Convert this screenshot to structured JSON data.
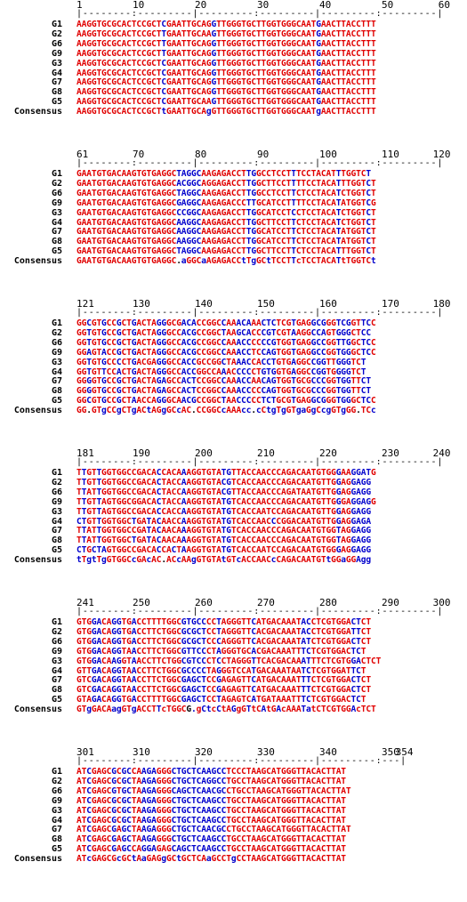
{
  "colors": {
    "identical": "#e00000",
    "variant": "#0000cc",
    "text": "#000000"
  },
  "consensus_label": "Consensus",
  "blocks": [
    {
      "positions": [
        "1",
        "10",
        "20",
        "30",
        "40",
        "50",
        "60"
      ],
      "ruler": "|--------:---------|---------:---------|---------:---------|",
      "rows": [
        {
          "name": "G1",
          "seq": "AAGGTGCGCACTCCGCTCGAATTGCAGGTTGGGTGCTTGGTGGGCAATGAACTTACCTTT",
          "mask": "rrrrrrrrrrrrrrrrrbrrrrrrrrrbrrrrrrrrrrrrrrrrrrrrbrrrrrrrrrrr"
        },
        {
          "name": "G2",
          "seq": "AAGGTGCGCACTCCGCTTGAATTGCAAGTTGGGTGCTTGGTGGGCAATGAACTTACCTTT",
          "mask": "rrrrrrrrrrrrrrrrrbrrrrrrrrrbrrrrrrrrrrrrrrrrrrrrbrrrrrrrrrrr"
        },
        {
          "name": "G6",
          "seq": "AAGGTGCGCACTCCGCTTGAATTGCAGGTTGGGTGCTTGGTGGGCAATGAACTTACCTTT",
          "mask": "rrrrrrrrrrrrrrrrrbrrrrrrrrrbrrrrrrrrrrrrrrrrrrrrbrrrrrrrrrrr"
        },
        {
          "name": "G9",
          "seq": "AAGGTGCGCACTCCGCTTGAATTGCAGGTTGGGTGCTTGGTGGGCAATGAACTTACCTTT",
          "mask": "rrrrrrrrrrrrrrrrrbrrrrrrrrrbrrrrrrrrrrrrrrrrrrrrbrrrrrrrrrrr"
        },
        {
          "name": "G3",
          "seq": "AAGGTGCGCACTCCGCTCGAATTGCAGGTTGGGTGCTTGGTGGGCAATGAACTTACCTTT",
          "mask": "rrrrrrrrrrrrrrrrrbrrrrrrrrrbrrrrrrrrrrrrrrrrrrrrbrrrrrrrrrrr"
        },
        {
          "name": "G4",
          "seq": "AAGGTGCGCACTCCGCTCGAATTGCAGGTTGGGTGCTTGGTGGGCAATGAACTTACCTTT",
          "mask": "rrrrrrrrrrrrrrrrrbrrrrrrrrrbrrrrrrrrrrrrrrrrrrrrbrrrrrrrrrrr"
        },
        {
          "name": "G7",
          "seq": "AAGGTGCGCACTCCGCTCGAATTGCAGGTTGGGTGCTTGGTGGGCAATGAACTTACCTTT",
          "mask": "rrrrrrrrrrrrrrrrrbrrrrrrrrrbrrrrrrrrrrrrrrrrrrrrbrrrrrrrrrrr"
        },
        {
          "name": "G8",
          "seq": "AAGGTGCGCACTCCGCTCGAATTGCAGGTTGGGTGCTTGGTGGGCAATGAACTTACCTTT",
          "mask": "rrrrrrrrrrrrrrrrrbrrrrrrrrrbrrrrrrrrrrrrrrrrrrrrbrrrrrrrrrrr"
        },
        {
          "name": "G5",
          "seq": "AAGGTGCGCACTCCGCTCGAATTGCAAGTTGGGTGCTTGGTGGGCAATGAACTTACCTTT",
          "mask": "rrrrrrrrrrrrrrrrrbrrrrrrrrrbrrrrrrrrrrrrrrrrrrrrbrrrrrrrrrrr"
        },
        {
          "name": "Consensus",
          "seq": "AAGGTGCGCACTCCGCTtGAATTGCAgGTTGGGTGCTTGGTGGGCAATgAACTTACCTTT",
          "mask": "rrrrrrrrrrrrrrrrrbrrrrrrrrbrrrrrrrrrrrrrrrrrrrrrbrrrrrrrrrrr"
        }
      ]
    },
    {
      "positions": [
        "61",
        "70",
        "80",
        "90",
        "100",
        "110",
        "120"
      ],
      "ruler": "|--------:---------|---------:---------|---------:---------|",
      "rows": [
        {
          "name": "G1",
          "seq": "GAATGTGACAAGTGTGAGGCTAGGCAAGAGACCTTGGCCTCCTTTCCTACATTTGGTCT",
          "mask": "rrrrrrrrrrrrrrrrrrrrbbbbbrrrrrrrrrbbrrrrrrrbrrrrrrrrbrrrrrb"
        },
        {
          "name": "G2",
          "seq": "GAATGTGACAAGTGTGAGGCACGGCAGGAGACCTTGGCTTCCTTTTCCTACATTTGGTCT",
          "mask": "rrrrrrrrrrrrrrrrrrrrbbbbbrrrrrrrrrbbrrrrrrrbrrrrrrrrbrrrrrbr"
        },
        {
          "name": "G6",
          "seq": "GAATGTGACAAGTGTGAGGCTAGGCAAGAGACCTTGGCCTCCTTCTCCTACATCTGGTCT",
          "mask": "rrrrrrrrrrrrrrrrrrrrbbbbbrrrrrrrrrbbrrrrrrrbrrrrrrrrbrrrrrbr"
        },
        {
          "name": "G9",
          "seq": "GAATGTGACAAGTGTGAGGCGAGGCAAGAGACCCTTGCATCCTTTTCCTACATATGGTCG",
          "mask": "rrrrrrrrrrrrrrrrrrrrbbbbbrrrrrrrrrbbrrrrrrrbrrrrrrrrbrrrrrbr"
        },
        {
          "name": "G3",
          "seq": "GAATGTGACAAGTGTGAGGCCCGGCAAGAGACCTTGGCATCCTCCTCCTACATCTGGTCT",
          "mask": "rrrrrrrrrrrrrrrrrrrrbbbbbrrrrrrrrrbbrrrrrrrbrrrrrrrrbrrrrrbr"
        },
        {
          "name": "G4",
          "seq": "GAATGTGACAAGTGTGAGGCAAGGCAAGAGACCTTGGCTTCCTTCTCCTACATCTGGTCT",
          "mask": "rrrrrrrrrrrrrrrrrrrrbbbbbrrrrrrrrrbbrrrrrrrbrrrrrrrrbrrrrrbr"
        },
        {
          "name": "G7",
          "seq": "GAATGTGACAAGTGTGAGGCAAGGCAAGAGACCTTGGCATCCTTCTCCTACATATGGTCT",
          "mask": "rrrrrrrrrrrrrrrrrrrrbbbbbrrrrrrrrrbbrrrrrrrbrrrrrrrrbrrrrrbr"
        },
        {
          "name": "G8",
          "seq": "GAATGTGACAAGTGTGAGGCAAGGCAAGAGACCTTGGCATCCTTCTCCTACATATGGTCT",
          "mask": "rrrrrrrrrrrrrrrrrrrrbbbbbrrrrrrrrrbbrrrrrrrbrrrrrrrrbrrrrrbr"
        },
        {
          "name": "G5",
          "seq": "GAATGTGACAAGTGTGAGGCTAGGCAAGAGACCTTGGCTTCCTTCTCCTACATTTGGTCT",
          "mask": "rrrrrrrrrrrrrrrrrrrrbbbbbrrrrrrrrrbbrrrrrrrbrrrrrrrrbrrrrrbr"
        },
        {
          "name": "Consensus",
          "seq": "GAATGTGACAAGTGTGAGGC.aGGCaAGAGACCtTgGCtTCCTTcTCCTACATtTGGTCt",
          "mask": "rrrrrrrrrrrrrrrrrrrrkbrrrbrrrrrrrbrbrrbrrrrbrrrrrrrrbrrrrrrb"
        }
      ]
    },
    {
      "positions": [
        "121",
        "130",
        "140",
        "150",
        "160",
        "170",
        "180"
      ],
      "ruler": "|--------:---------|---------:---------|---------:---------|",
      "rows": [
        {
          "name": "G1",
          "seq": "GGCGTGCCGCTGACTAGGGCGACACCGGCCAAACAAACTCTCGTGAGGCGGGTCGGTTCC",
          "mask": "rrbrrbrrbrrbrrrrbbrrrbbbrrrrrbrrbbbrrbbbrrrbrrrbbbrrbbbrrbbr"
        },
        {
          "name": "G2",
          "seq": "GGTGTGCCGCTGACTAGGGCCACGCCGGCTAAGCACCCGTCGTAAGGCCAGTGGGCTCC",
          "mask": "rrbrrbrrbrrbrrrrbbrrrbbbrrrrrbrrbbbrrbbbrrrbrrrbbbrrbbbrrbbr"
        },
        {
          "name": "G6",
          "seq": "GGTGTGCCGCTGACTAGGGCCACGCCGGCCAAACCCCCCGTGGTGAGGCCGGTTGGCTCC",
          "mask": "rrbrrbrrbrrbrrrrbbrrrbbbrrrrrbrrbbbrrbbbrrrbrrrbbbrrbbbrrbbr"
        },
        {
          "name": "G9",
          "seq": "GGAGTACCGCTGACTAGGGCCACGCCGGCCAAACCTCCAGTGGTGAGGCCGGTGGGCTCC",
          "mask": "rrbrrbrrbrrbrrrrbbrrrbbbrrrrrbrrbbbrrbbbrrrbrrrbbbrrbbbrrbbr"
        },
        {
          "name": "G3",
          "seq": "GGTGTGCCCCTGACGAGGGCCACCGCCGGCTAAACCACCTGTGAGGCCGGTTGGGTCT",
          "mask": "rrbrrbrrbrrbrrrrbbrrrbbbrrrrrbrrbbbrrbbbrrrbrrrbbbrrbbbrrbbr"
        },
        {
          "name": "G4",
          "seq": "GGTGTTCCACTGACTAGGGCCACCGGCCAAACCCCCTGTGGTGAGGCCGGTGGGGTCT",
          "mask": "rrbrrbrrbrrbrrrrbbrrrbbbrrrrrbrrbbbrrbbbrrrbrrrbbbrrbbbrrbbr"
        },
        {
          "name": "G7",
          "seq": "GGGGTGCCGCTGACTAGAGCCACTCCGGCCAAACCAACAGTGGTGCGCCCGGTGGTTCT",
          "mask": "rrbrrbrrbrrbrrrrbbrrrbbbrrrrrbrrbbbrrbbbrrrbrrrbbbrrbbbrrbbr"
        },
        {
          "name": "G8",
          "seq": "GGGGTGCCGCTGACTAGAGCCACTCCGGCCAAACCCCCAGTGGTGCGCCCGGTGGTTCT",
          "mask": "rrbrrbrrbrrbrrrrbbrrrbbbrrrrrbrrbbbrrbbbrrrbrrrbbbrrbbbrrbbr"
        },
        {
          "name": "G5",
          "seq": "GGCGTGCCGCTAACCAGGGCAACGCCGGCTAACCCCCTCTGCGTGAGGCGGGTGGGCTCC",
          "mask": "rrbrrbrrbrrbrrrrbbrrrbbbrrrrrbrrbbbrrbbbrrrbrrrbbbrrbbbrrbbr"
        },
        {
          "name": "Consensus",
          "seq": "GG.GTgCCgCTgACtAGgGCcAC.CCGGCcAAAcc.cCtgTgGTgaGgCcgGTgGG.TCc",
          "mask": "rrkrrbrrbrrbrrbrrbrrbrrkrrrrrbrrrbbkbrbbrbrrbbrbrbbrrbrrkrrb"
        }
      ]
    },
    {
      "positions": [
        "181",
        "190",
        "200",
        "210",
        "220",
        "230",
        "240"
      ],
      "ruler": "|--------:---------|---------:---------|---------:---------|",
      "rows": [
        {
          "name": "G1",
          "seq": "TTGTTGGTGGCCGACACCACAAAGGTGTATGTTACCAACCCAGACAATGTGGGAAGGATG",
          "mask": "rbrrbrrrrrrrrrrrbrrrrbrrrrrrrbbrrrrrrrrrrrrrrrrrrrrrbrrbbbb"
        },
        {
          "name": "G2",
          "seq": "TTGTTGGTGGCCGACACTACCAAGGTGTACGTCACCAACCCAGACAATGTTGGAGGAGG",
          "mask": "rbrrbrrrrrrrrrrrbrrrrbrrrrrrrbbrrrrrrrrrrrrrrrrrrrrrbrrbbbb"
        },
        {
          "name": "G6",
          "seq": "TTATTGGTGGCCGACACTACCAAGGTGTACGTTACCAACCCAGATAATGTTGGAGGAGG",
          "mask": "rbrrbrrrrrrrrrrrbrrrrbrrrrrrrbbrrrrrrrrrrrrrrrrrrrrrbrrbbbb"
        },
        {
          "name": "G9",
          "seq": "TTGTTAGTGGCGGACACTACCAAGGTGTATGTCACCAACCCAGACAATGTTGGGAGGAGG",
          "mask": "rbrrbrrrrrrrrrrrbrrrrbrrrrrrrbbrrrrrrrrrrrrrrrrrrrrrbrrbbbb"
        },
        {
          "name": "G3",
          "seq": "TTGTTAGTGGCCGACACCACCAAGGTGTATGTCACCAATCCAGACAATGTTGGAGGAGG",
          "mask": "rbrrbrrrrrrrrrrrbrrrrbrrrrrrrbbrrrrrrrrrrrrrrrrrrrrrbrrbbbb"
        },
        {
          "name": "G4",
          "seq": "CTGTTGGTGGCTGATACAACCAAGGTGTATGTCACCAACCCGGACAATGTTGGAGGAGA",
          "mask": "bbrrbrrrrrrbrrbrbrrrrbrrrrrrrbbrrrrrrrrbrrrrrrrrrrrrbrrbbbb"
        },
        {
          "name": "G7",
          "seq": "TTATTGGTGGCCGATACAACAAAGGTGTATGTCACCAACCCAGACAATGTGGTAGGAGG",
          "mask": "rbrrbrrrrrrrrrbrbrrrrbrrrrrrrbbrrrrrrrrrrrrrrrrrrrrrbrrbbbb"
        },
        {
          "name": "G8",
          "seq": "TTATTGGTGGCTGATACAACAAAGGTGTATGTCACCAACCCAGACAATGTGGTAGGAGG",
          "mask": "rbrrbrrrrrrbrrbrbrrrrbrrrrrrrbbrrrrrrrrrrrrrrrrrrrrrbrrbbbb"
        },
        {
          "name": "G5",
          "seq": "CTGCTAGTGGCCGACACCACTAAGGTGTATGTCACCAATCCAGACAATGTGGGAGGAGG",
          "mask": "bbrbbbrrrrrrrrrrbrrbrbrrrrrrrbbrrrrrrrrrrrrrrrrrrrrrbrrbbbb"
        },
        {
          "name": "Consensus",
          "seq": "tTgtTgGTGGCcGAcAC.ACcAAgGTGTAtGTcACCAACcCAGACAATGTtGGaGGAgg",
          "mask": "brbbrbrrrrrbrrbrrkrrbrrbrrrrrbrrbrrrrrrbrrrrrrrrrrbrrbrrbbb"
        }
      ]
    },
    {
      "positions": [
        "241",
        "250",
        "260",
        "270",
        "280",
        "290",
        "300"
      ],
      "ruler": "|--------:---------|---------:---------|---------:---------|",
      "rows": [
        {
          "name": "G1",
          "seq": "GTGGACAGGTGACCTTTTGGCGTGCCCCTAGGGTTCATGACAAATACCTCGTGGACTCT",
          "mask": "rrrbbrrbbrrbrrrrrrrrrbbbbbrrbrrrrrrbrrrrrrrrrbbrrrrrrrrbbrr"
        },
        {
          "name": "G2",
          "seq": "GTGGACAGGTGACCTTCTGGCGCGCTCCTAGGGTTCACGACAAATACCTCGTGGATTCT",
          "mask": "rrrbbrrbbrrbrrrrrrrrrbbbbbrrbrrrrrrbrrrrrrrrrbbrrrrrrrrbbrr"
        },
        {
          "name": "G6",
          "seq": "GTGGACAGGTGACCTTCTGGCGCGCTCCCAGGGTTCACGACAAATATCTCGTGGACTCT",
          "mask": "rrrbbrrbbrrbrrrrrrrrrbbbbbrrbrrrrrrbrrrrrrrrrbbrrrrrrrrbbrr"
        },
        {
          "name": "G9",
          "seq": "GTGGACAGGTAACCTTCTGGCGTTCCCTAGGGTGCACGACAAATTTCTCGTGGACTCT",
          "mask": "rrrbbrrbbrrbrrrrrrrrrbbbbbrrbrrrrrrbrrrrrrrrrbbrrrrrrrrbbrr"
        },
        {
          "name": "G3",
          "seq": "GTGGACAAGGTAACCTTCTGGCGTCCCTCCTAGGGTTCACGACAAATTTCTCGTGGACTCT",
          "mask": "rrrbbrrbbrrbrrrrrrrrrbbbbbrrbrrrrrrbrrrrrrrrrbbrrrrrrrrbbrr"
        },
        {
          "name": "G4",
          "seq": "GTTGACAGGTAACCTTCTGGCGCCCCTAGGGTCCATGACAAATAATCTCGTGGATTCT",
          "mask": "rrrbbrrbbrrbrrrrrrrrrbbbbbrrbrrrrrrbrrrrrrrrrbbrrrrrrrrbbrr"
        },
        {
          "name": "G7",
          "seq": "GTCGACAGGTAACCTTCTGGCGAGCTCCGAGAGTTCATGACAAATTTCTCGTGGACTCT",
          "mask": "rrrbbrrbbrrbrrrrrrrrrbbbbbrrbrrrrrrbrrrrrrrrrbbrrrrrrrrbbrr"
        },
        {
          "name": "G8",
          "seq": "GTCGACAGGTAACCTTCTGGCGAGCTCCGAGAGTTCATGACAAATTTCTCGTGGACTCT",
          "mask": "rrrbbrrbbrrbrrrrrrrrrbbbbbrrbrrrrrrbrrrrrrrrrbbrrrrrrrrbbrr"
        },
        {
          "name": "G5",
          "seq": "GTAGACAGGTGACCTTTTGGCGAGCTCCTAGAGTCATGATAAATTTCTCGTGGACTCT",
          "mask": "rrrbbrrbbrrbrrrrrrrrrbbbbbrrbrrrrrrbrrrrrrrrrbbrrrrrrrrbbrr"
        },
        {
          "name": "Consensus",
          "seq": "GTgGACAagGTgACCTTcTGGCG.gCtcCtAGgGTtCAtGAcAAATatCTCGTGGAcTCT",
          "mask": "rrbrrrrbbrrbrrrrbrrrrrkbrbbrbrrbrrbrrbrrbrrrrbbrrrrrrrrbrrr"
        }
      ]
    },
    {
      "positions": [
        "301",
        "310",
        "320",
        "330",
        "340",
        "350",
        "354"
      ],
      "ruler": "|--------:---------|---------:---------|---------:---|",
      "rows": [
        {
          "name": "G1",
          "seq": "ATCGAGCGCGCCAAGAGGGCTGCTCAAGCCTCCCTAAGCATGGGTTACACTTAT",
          "mask": "rrbrrrrbrbbrrbbbrrrbbbbbbbbbbbrrrrrrrrrrrrrrrrrrrrrrrr"
        },
        {
          "name": "G2",
          "seq": "ATCGAGCGCGCTAAGAGGGCTGCTCAGGCCTGCCTAAGCATGGGTTACACTTAT",
          "mask": "rrbrrrrbrbbrrbbbrrrbbbbbbbbbbbrrrrrrrrrrrrrrrrrrrrrrrr"
        },
        {
          "name": "G6",
          "seq": "ATCGAGCGTGCTAAGAGGGCAGCTCAACGCCTGCCTAAGCATGGGTTACACTTAT",
          "mask": "rrbrrrrbrbbrrbbbrrrbbbbbbbbbbbrrrrrrrrrrrrrrrrrrrrrrrr"
        },
        {
          "name": "G9",
          "seq": "ATCGAGCGCGCTAAGAGGGCTGCTCAAGCCTGCCTAAGCATGGGTTACACTTAT",
          "mask": "rrbrrrrbrbbrrbbbrrrbbbbbbbbbbbrrrrrrrrrrrrrrrrrrrrrrrr"
        },
        {
          "name": "G3",
          "seq": "ATCGAGCGCGCTAAGAGGGCTGCTCAAGCCTGCCTAAGCATGGGTTACACTTAT",
          "mask": "rrbrrrrbrbbrrbbbrrrbbbbbbbbbbbrrrrrrrrrrrrrrrrrrrrrrrr"
        },
        {
          "name": "G4",
          "seq": "ATCGAGCGCGCTAAGAGGGCTGCTCAAGCCTGCCTAAGCATGGGTTACACTTAT",
          "mask": "rrbrrrrbrbbrrbbbrrrbbbbbbbbbbbrrrrrrrrrrrrrrrrrrrrrrrr"
        },
        {
          "name": "G7",
          "seq": "ATCGAGCGAGCTAAGAGGGCTGCTCAACGCCTGCCTAAGCATGGGTTACACTTAT",
          "mask": "rrbrrrrbrbbrrbbbrrrbbbbbbbbbbbrrrrrrrrrrrrrrrrrrrrrrrr"
        },
        {
          "name": "G8",
          "seq": "ATCGAGCGAGCTAAGAGGGCTGCTCAAGCCTGCCTAAGCATGGGTTACACTTAT",
          "mask": "rrbrrrrbrbbrrbbbrrrbbbbbbbbbbbrrrrrrrrrrrrrrrrrrrrrrrr"
        },
        {
          "name": "G5",
          "seq": "ATCGAGCGAGCCAGGAGAGCAGCTCAAGCCTGCCTAAGCATGGGTTACACTTAT",
          "mask": "rrbrrrrbrbbrrbbbrrrbbbbbbbbbbbrrrrrrrrrrrrrrrrrrrrrrrr"
        },
        {
          "name": "Consensus",
          "seq": "ATcGAGCGcGCtAaGAGgGCtGCTCAaGCCTgCCTAAGCATGGGTTACACTTAT",
          "mask": "rrbrrrrrbrrbrbrrrbrrbrrrrrbrrrrbrrrrrrrrrrrrrrrrrrrrrr"
        }
      ]
    }
  ]
}
